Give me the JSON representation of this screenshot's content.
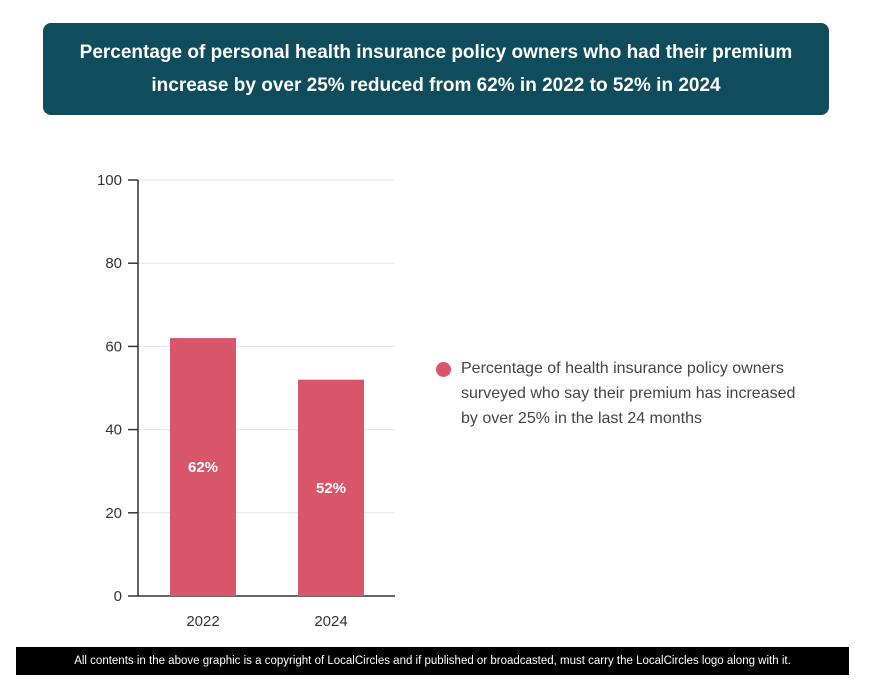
{
  "title": "Percentage of personal health insurance policy owners who had their premium increase by over 25% reduced from 62% in 2022 to 52% in 2024",
  "colors": {
    "title_bg": "#0f4c5c",
    "bar": "#d9566a",
    "footer_bg": "#000000"
  },
  "chart_data": {
    "type": "bar",
    "title": "Percentage of personal health insurance policy owners who had their premium increase by over 25% reduced from 62% in 2022 to 52% in 2024",
    "categories": [
      "2022",
      "2024"
    ],
    "series": [
      {
        "name": "Percentage of health insurance policy owners surveyed who say their premium has increased by over 25% in the last 24 months",
        "values": [
          62,
          52
        ],
        "data_labels": [
          "62%",
          "52%"
        ]
      }
    ],
    "ylim": [
      0,
      100
    ],
    "yticks": [
      0,
      20,
      40,
      60,
      80,
      100
    ],
    "xlabel": "",
    "ylabel": "",
    "grid": true,
    "legend_position": "right"
  },
  "legend": {
    "label": "Percentage of health insurance policy owners surveyed who say their premium has increased by over 25% in the last 24 months"
  },
  "footer": "All contents in the above graphic is a copyright of LocalCircles and if published or broadcasted, must carry the LocalCircles logo along with it."
}
